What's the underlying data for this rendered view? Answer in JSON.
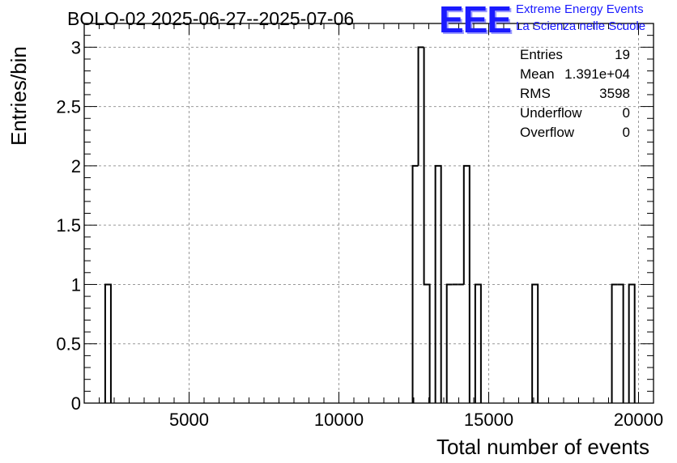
{
  "title": "BOLO-02 2025-06-27--2025-07-06",
  "logo": {
    "mark": "EEE",
    "line1": "Extreme Energy Events",
    "line2": "La Scienza nelle Scuole",
    "color": "#1a1aff"
  },
  "stats": [
    {
      "label": "Entries",
      "value": "19"
    },
    {
      "label": "Mean",
      "value": "1.391e+04"
    },
    {
      "label": "RMS",
      "value": "3598"
    },
    {
      "label": "Underflow",
      "value": "0"
    },
    {
      "label": "Overflow",
      "value": "0"
    }
  ],
  "chart_data": {
    "type": "bar",
    "style": "step-histogram",
    "xlabel": "Total number of events",
    "ylabel": "Entries/bin",
    "xlim": [
      1500,
      20500
    ],
    "ylim": [
      0,
      3.2
    ],
    "bin_width": 190,
    "x_ticks": [
      5000,
      10000,
      15000,
      20000
    ],
    "y_ticks": [
      0,
      0.5,
      1,
      1.5,
      2,
      2.5,
      3
    ],
    "y_tick_labels": [
      "0",
      "0.5",
      "1",
      "1.5",
      "2",
      "2.5",
      "3"
    ],
    "grid": true,
    "bins": [
      {
        "x0": 2200,
        "value": 1
      },
      {
        "x0": 12460,
        "value": 2
      },
      {
        "x0": 12650,
        "value": 3
      },
      {
        "x0": 12840,
        "value": 1
      },
      {
        "x0": 13220,
        "value": 2
      },
      {
        "x0": 13600,
        "value": 1
      },
      {
        "x0": 13790,
        "value": 1
      },
      {
        "x0": 13980,
        "value": 1
      },
      {
        "x0": 14170,
        "value": 2
      },
      {
        "x0": 14550,
        "value": 1
      },
      {
        "x0": 16450,
        "value": 1
      },
      {
        "x0": 19110,
        "value": 1
      },
      {
        "x0": 19300,
        "value": 1
      },
      {
        "x0": 19680,
        "value": 1
      }
    ],
    "line_color": "#000000",
    "grid_color": "#999999"
  }
}
